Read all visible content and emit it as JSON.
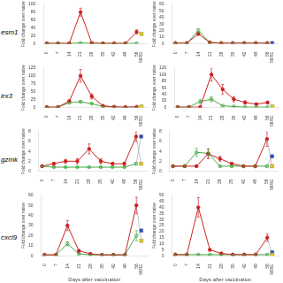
{
  "chart_data": [
    {
      "type": "line",
      "ylabel": "Fold change over naive",
      "annotations": [
        "esm1"
      ],
      "grid": false,
      "x": [
        0,
        7,
        14,
        21,
        28,
        35,
        42,
        49,
        56
      ],
      "xlim": [
        -2,
        63
      ],
      "xticks": [
        0,
        7,
        14,
        21,
        28,
        35,
        42,
        49,
        56,
        {
          "value": 59,
          "label": "56RE"
        }
      ],
      "ylim": [
        0,
        100
      ],
      "yticks": [
        0,
        20,
        40,
        60,
        80,
        100
      ],
      "series": [
        {
          "color": "#cc2222",
          "marker": "circle",
          "values": [
            1,
            1,
            1,
            80,
            2,
            1,
            1,
            1,
            30
          ],
          "error": [
            0.2,
            0.2,
            0.2,
            10,
            0.5,
            0.2,
            0.2,
            0.2,
            5
          ],
          "revaccination": {
            "x": 59,
            "value": 25,
            "color": "#ddcc00",
            "marker": "square"
          }
        },
        {
          "color": "#44aa44",
          "marker": "open_circle",
          "values": [
            1,
            1,
            1,
            2,
            1,
            1,
            1,
            1,
            1
          ],
          "error": [
            0.2,
            0.2,
            0.2,
            0.3,
            0.2,
            0.2,
            0.2,
            0.2,
            0.2
          ]
        }
      ]
    },
    {
      "type": "line",
      "ylabel": "Fold change over naive",
      "grid": false,
      "x": [
        0,
        7,
        14,
        21,
        28,
        35,
        42,
        49,
        56
      ],
      "xlim": [
        -2,
        63
      ],
      "xticks": [
        0,
        7,
        14,
        21,
        28,
        35,
        42,
        49,
        56,
        {
          "value": 59,
          "label": "56RE"
        }
      ],
      "ylim": [
        0,
        60
      ],
      "yticks": [
        0,
        10,
        20,
        30,
        40,
        50,
        60
      ],
      "series": [
        {
          "color": "#cc2222",
          "marker": "circle",
          "values": [
            1,
            1,
            15,
            2,
            1,
            1,
            1,
            1,
            1
          ],
          "error": [
            0.2,
            0.2,
            2,
            0.5,
            0.2,
            0.2,
            0.2,
            0.2,
            0.2
          ]
        },
        {
          "color": "#44aa44",
          "marker": "open_circle",
          "values": [
            1,
            1,
            20,
            2,
            1,
            1,
            1,
            1,
            1
          ],
          "error": [
            0.2,
            0.2,
            3,
            0.5,
            0.2,
            0.2,
            0.2,
            0.2,
            0.2
          ],
          "revaccination": {
            "x": 59,
            "value": 1,
            "color": "#2244cc",
            "marker": "square"
          }
        }
      ]
    },
    {
      "type": "line",
      "ylabel": "Fold change over naive",
      "annotations": [
        "irx3"
      ],
      "grid": false,
      "x": [
        0,
        7,
        14,
        21,
        28,
        35,
        42,
        49,
        56
      ],
      "xlim": [
        -2,
        63
      ],
      "xticks": [
        0,
        7,
        14,
        21,
        28,
        35,
        42,
        49,
        56,
        {
          "value": 59,
          "label": "56RE"
        }
      ],
      "ylim": [
        0,
        125
      ],
      "yticks": [
        0,
        25,
        50,
        75,
        100,
        125
      ],
      "series": [
        {
          "color": "#cc2222",
          "marker": "circle",
          "values": [
            1,
            1,
            20,
            100,
            35,
            5,
            2,
            1,
            2
          ],
          "error": [
            0.2,
            0.2,
            3,
            20,
            8,
            1,
            0.5,
            0.2,
            0.5
          ],
          "revaccination": {
            "x": 59,
            "value": 3,
            "color": "#ddcc00",
            "marker": "square"
          }
        },
        {
          "color": "#44aa44",
          "marker": "open_circle",
          "values": [
            1,
            1,
            15,
            18,
            12,
            3,
            1,
            1,
            1
          ],
          "error": [
            0.2,
            0.2,
            2,
            3,
            2,
            0.5,
            0.2,
            0.2,
            0.2
          ]
        }
      ]
    },
    {
      "type": "line",
      "ylabel": "Fold change over naive",
      "grid": false,
      "x": [
        0,
        7,
        14,
        21,
        28,
        35,
        42,
        49,
        56
      ],
      "xlim": [
        -2,
        63
      ],
      "xticks": [
        0,
        7,
        14,
        21,
        28,
        35,
        42,
        49,
        56,
        {
          "value": 59,
          "label": "56RE"
        }
      ],
      "ylim": [
        0,
        120
      ],
      "yticks": [
        0,
        20,
        40,
        60,
        80,
        100,
        120
      ],
      "series": [
        {
          "color": "#cc2222",
          "marker": "circle",
          "values": [
            1,
            1,
            1,
            100,
            55,
            25,
            15,
            10,
            15
          ],
          "error": [
            0.2,
            0.2,
            0.2,
            20,
            15,
            8,
            5,
            3,
            4
          ],
          "revaccination": {
            "x": 59,
            "value": 3,
            "color": "#ddcc00",
            "marker": "square"
          }
        },
        {
          "color": "#44aa44",
          "marker": "open_circle",
          "values": [
            1,
            1,
            18,
            25,
            5,
            3,
            1,
            1,
            1
          ],
          "error": [
            0.2,
            0.2,
            5,
            8,
            1,
            0.5,
            0.2,
            0.2,
            0.2
          ]
        }
      ]
    },
    {
      "type": "line",
      "ylabel": "Fold change over naive",
      "annotations": [
        "gzmk"
      ],
      "grid": false,
      "x": [
        0,
        7,
        14,
        21,
        28,
        35,
        42,
        49,
        56
      ],
      "xlim": [
        -2,
        63
      ],
      "xticks": [
        0,
        7,
        14,
        21,
        28,
        35,
        42,
        49,
        56,
        {
          "value": 59,
          "label": "56RE"
        }
      ],
      "ylim": [
        0,
        8
      ],
      "yticks": [
        0,
        2,
        4,
        6,
        8
      ],
      "series": [
        {
          "color": "#cc2222",
          "marker": "circle",
          "values": [
            1,
            1.5,
            2,
            2,
            4.5,
            2,
            1.5,
            1.5,
            7
          ],
          "error": [
            0.2,
            0.3,
            0.4,
            0.5,
            1,
            0.5,
            0.3,
            0.3,
            1
          ],
          "revaccination": {
            "x": 59,
            "value": 1.5,
            "color": "#ddcc00",
            "marker": "square"
          }
        },
        {
          "color": "#44aa44",
          "marker": "open_circle",
          "values": [
            1,
            0.8,
            0.8,
            0.8,
            0.8,
            0.8,
            0.8,
            0.8,
            1.5
          ],
          "error": [
            0.1,
            0.1,
            0.1,
            0.1,
            0.1,
            0.1,
            0.1,
            0.1,
            0.3
          ],
          "revaccination": {
            "x": 59,
            "value": 7,
            "color": "#2244cc",
            "marker": "square"
          }
        }
      ]
    },
    {
      "type": "line",
      "ylabel": "Fold change over naive",
      "grid": false,
      "x": [
        0,
        7,
        14,
        21,
        28,
        35,
        42,
        49,
        56
      ],
      "xlim": [
        -2,
        63
      ],
      "xticks": [
        0,
        7,
        14,
        21,
        28,
        35,
        42,
        49,
        56,
        {
          "value": 59,
          "label": "56RE"
        }
      ],
      "ylim": [
        0,
        8
      ],
      "yticks": [
        0,
        2,
        4,
        6,
        8
      ],
      "series": [
        {
          "color": "#cc2222",
          "marker": "circle",
          "values": [
            1,
            1,
            1,
            3.5,
            2.5,
            1.5,
            1,
            1,
            6.5
          ],
          "error": [
            0.2,
            0.2,
            0.2,
            1,
            0.5,
            0.3,
            0.2,
            0.2,
            1.5
          ],
          "revaccination": {
            "x": 59,
            "value": 1,
            "color": "#ddcc00",
            "marker": "square"
          }
        },
        {
          "color": "#44aa44",
          "marker": "open_circle",
          "values": [
            1,
            1,
            3.8,
            3.6,
            1,
            1,
            1,
            1,
            1
          ],
          "error": [
            0.2,
            0.2,
            0.8,
            0.8,
            0.2,
            0.2,
            0.2,
            0.2,
            0.2
          ],
          "revaccination": {
            "x": 59,
            "value": 3,
            "color": "#2244cc",
            "marker": "square"
          }
        }
      ]
    },
    {
      "type": "line",
      "xlabel": "Days after vaccination",
      "ylabel": "Fold change over naive",
      "annotations": [
        "cxcl9"
      ],
      "grid": false,
      "x": [
        0,
        7,
        14,
        21,
        28,
        35,
        42,
        49,
        56
      ],
      "xlim": [
        -2,
        63
      ],
      "xticks": [
        0,
        7,
        14,
        21,
        28,
        35,
        42,
        49,
        56,
        {
          "value": 59,
          "label": "56RE"
        }
      ],
      "ylim": [
        0,
        60
      ],
      "yticks": [
        0,
        10,
        20,
        30,
        40,
        50,
        60
      ],
      "series": [
        {
          "color": "#cc2222",
          "marker": "circle",
          "values": [
            1,
            1,
            30,
            5,
            2,
            1,
            1,
            1,
            50
          ],
          "error": [
            0.2,
            0.2,
            5,
            1,
            0.5,
            0.2,
            0.2,
            0.2,
            8
          ],
          "revaccination": {
            "x": 59,
            "value": 15,
            "color": "#ddcc00",
            "marker": "square"
          }
        },
        {
          "color": "#44aa44",
          "marker": "open_circle",
          "values": [
            1,
            1,
            12,
            2,
            1,
            1,
            1,
            1,
            20
          ],
          "error": [
            0.2,
            0.2,
            2,
            0.5,
            0.2,
            0.2,
            0.2,
            0.2,
            5
          ],
          "revaccination": {
            "x": 59,
            "value": 25,
            "color": "#2244cc",
            "marker": "square"
          }
        }
      ]
    },
    {
      "type": "line",
      "xlabel": "Days after vaccination",
      "ylabel": "Fold change over naive",
      "grid": false,
      "x": [
        0,
        7,
        14,
        21,
        28,
        35,
        42,
        49,
        56
      ],
      "xlim": [
        -2,
        63
      ],
      "xticks": [
        0,
        7,
        14,
        21,
        28,
        35,
        42,
        49,
        56,
        {
          "value": 59,
          "label": "56RE"
        }
      ],
      "ylim": [
        0,
        50
      ],
      "yticks": [
        0,
        5,
        10,
        15,
        20,
        25,
        30,
        35,
        40,
        45,
        50
      ],
      "series": [
        {
          "color": "#cc2222",
          "marker": "circle",
          "values": [
            1,
            1,
            40,
            5,
            2,
            1,
            1,
            1,
            15
          ],
          "error": [
            0.2,
            0.2,
            8,
            1,
            0.5,
            0.2,
            0.2,
            0.2,
            3
          ],
          "revaccination": {
            "x": 59,
            "value": 1,
            "color": "#ddcc00",
            "marker": "square"
          }
        },
        {
          "color": "#44aa44",
          "marker": "open_circle",
          "values": [
            1,
            1,
            1,
            1,
            1,
            1,
            1,
            1,
            1
          ],
          "error": [
            0.1,
            0.1,
            0.1,
            0.1,
            0.1,
            0.1,
            0.1,
            0.1,
            0.1
          ],
          "revaccination": {
            "x": 59,
            "value": 3,
            "color": "#2244cc",
            "marker": "square"
          }
        }
      ]
    }
  ]
}
